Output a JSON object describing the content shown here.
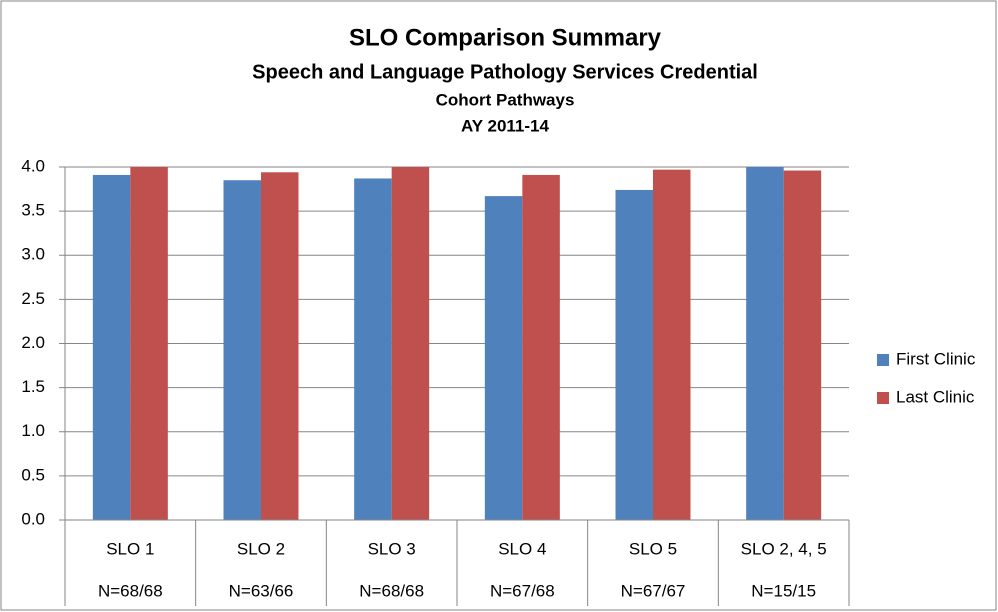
{
  "chart_data": {
    "type": "bar",
    "title": "SLO Comparison Summary",
    "subtitles": [
      "Speech and Language Pathology Services Credential",
      "Cohort Pathways",
      "AY 2011-14"
    ],
    "categories": [
      "SLO 1",
      "SLO 2",
      "SLO 3",
      "SLO 4",
      "SLO 5",
      "SLO 2, 4, 5"
    ],
    "category_counts": [
      "N=68/68",
      "N=63/66",
      "N=68/68",
      "N=67/68",
      "N=67/67",
      "N=15/15"
    ],
    "series": [
      {
        "name": "First Clinic",
        "color": "#4f81bd",
        "values": [
          3.91,
          3.85,
          3.87,
          3.67,
          3.74,
          4.0
        ]
      },
      {
        "name": "Last Clinic",
        "color": "#c0504d",
        "values": [
          4.0,
          3.94,
          4.0,
          3.91,
          3.97,
          3.96
        ]
      }
    ],
    "ylim": [
      0,
      4
    ],
    "yticks": [
      {
        "value": 0,
        "label": "0.0"
      },
      0.5,
      {
        "value": 1,
        "label": "1.0"
      },
      1.5,
      {
        "value": 2,
        "label": "2.0"
      },
      2.5,
      {
        "value": 3,
        "label": "3.0"
      },
      3.5,
      {
        "value": 4,
        "label": "4.0"
      }
    ],
    "grid": true,
    "legend": "right"
  }
}
